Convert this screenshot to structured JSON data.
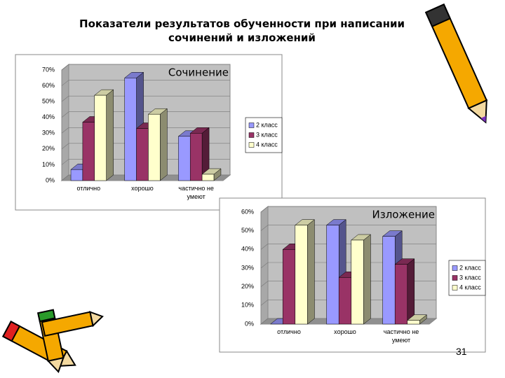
{
  "title": "Показатели результатов обученности при написании сочинений и изложений",
  "page_number": 31,
  "chart_data": [
    {
      "type": "bar",
      "title": "Сочинение",
      "categories": [
        "отлично",
        "хорошо",
        "частично не умеют"
      ],
      "series": [
        {
          "name": "2 класс",
          "color": "#9999ff",
          "values": [
            7,
            65,
            28
          ]
        },
        {
          "name": "3 класс",
          "color": "#993366",
          "values": [
            37,
            33,
            30
          ]
        },
        {
          "name": "4 класс",
          "color": "#ffffcc",
          "values": [
            54,
            42,
            4
          ]
        }
      ],
      "ylim": [
        0,
        70
      ],
      "yticks": [
        {
          "value": 0,
          "label": "0%"
        },
        {
          "value": 10,
          "label": "10%"
        },
        {
          "value": 20,
          "label": "20%"
        },
        {
          "value": 30,
          "label": "30%"
        },
        {
          "value": 40,
          "label": "40%"
        },
        {
          "value": 50,
          "label": "50%"
        },
        {
          "value": 60,
          "label": "60%"
        },
        {
          "value": 70,
          "label": "70%"
        }
      ],
      "grid": true,
      "legend": "right"
    },
    {
      "type": "bar",
      "title": "Изложение",
      "categories": [
        "отлично",
        "хорошо",
        "частично не умеют"
      ],
      "series": [
        {
          "name": "2 класс",
          "color": "#9999ff",
          "values": [
            0,
            53,
            47
          ]
        },
        {
          "name": "3 класс",
          "color": "#993366",
          "values": [
            40,
            25,
            32
          ]
        },
        {
          "name": "4 класс",
          "color": "#ffffcc",
          "values": [
            53,
            45,
            2
          ]
        }
      ],
      "ylim": [
        0,
        60
      ],
      "yticks": [
        {
          "value": 0,
          "label": "0%"
        },
        {
          "value": 10,
          "label": "10%"
        },
        {
          "value": 20,
          "label": "20%"
        },
        {
          "value": 30,
          "label": "30%"
        },
        {
          "value": 40,
          "label": "40%"
        },
        {
          "value": 50,
          "label": "50%"
        },
        {
          "value": 60,
          "label": "60%"
        }
      ],
      "grid": true,
      "legend": "right"
    }
  ]
}
